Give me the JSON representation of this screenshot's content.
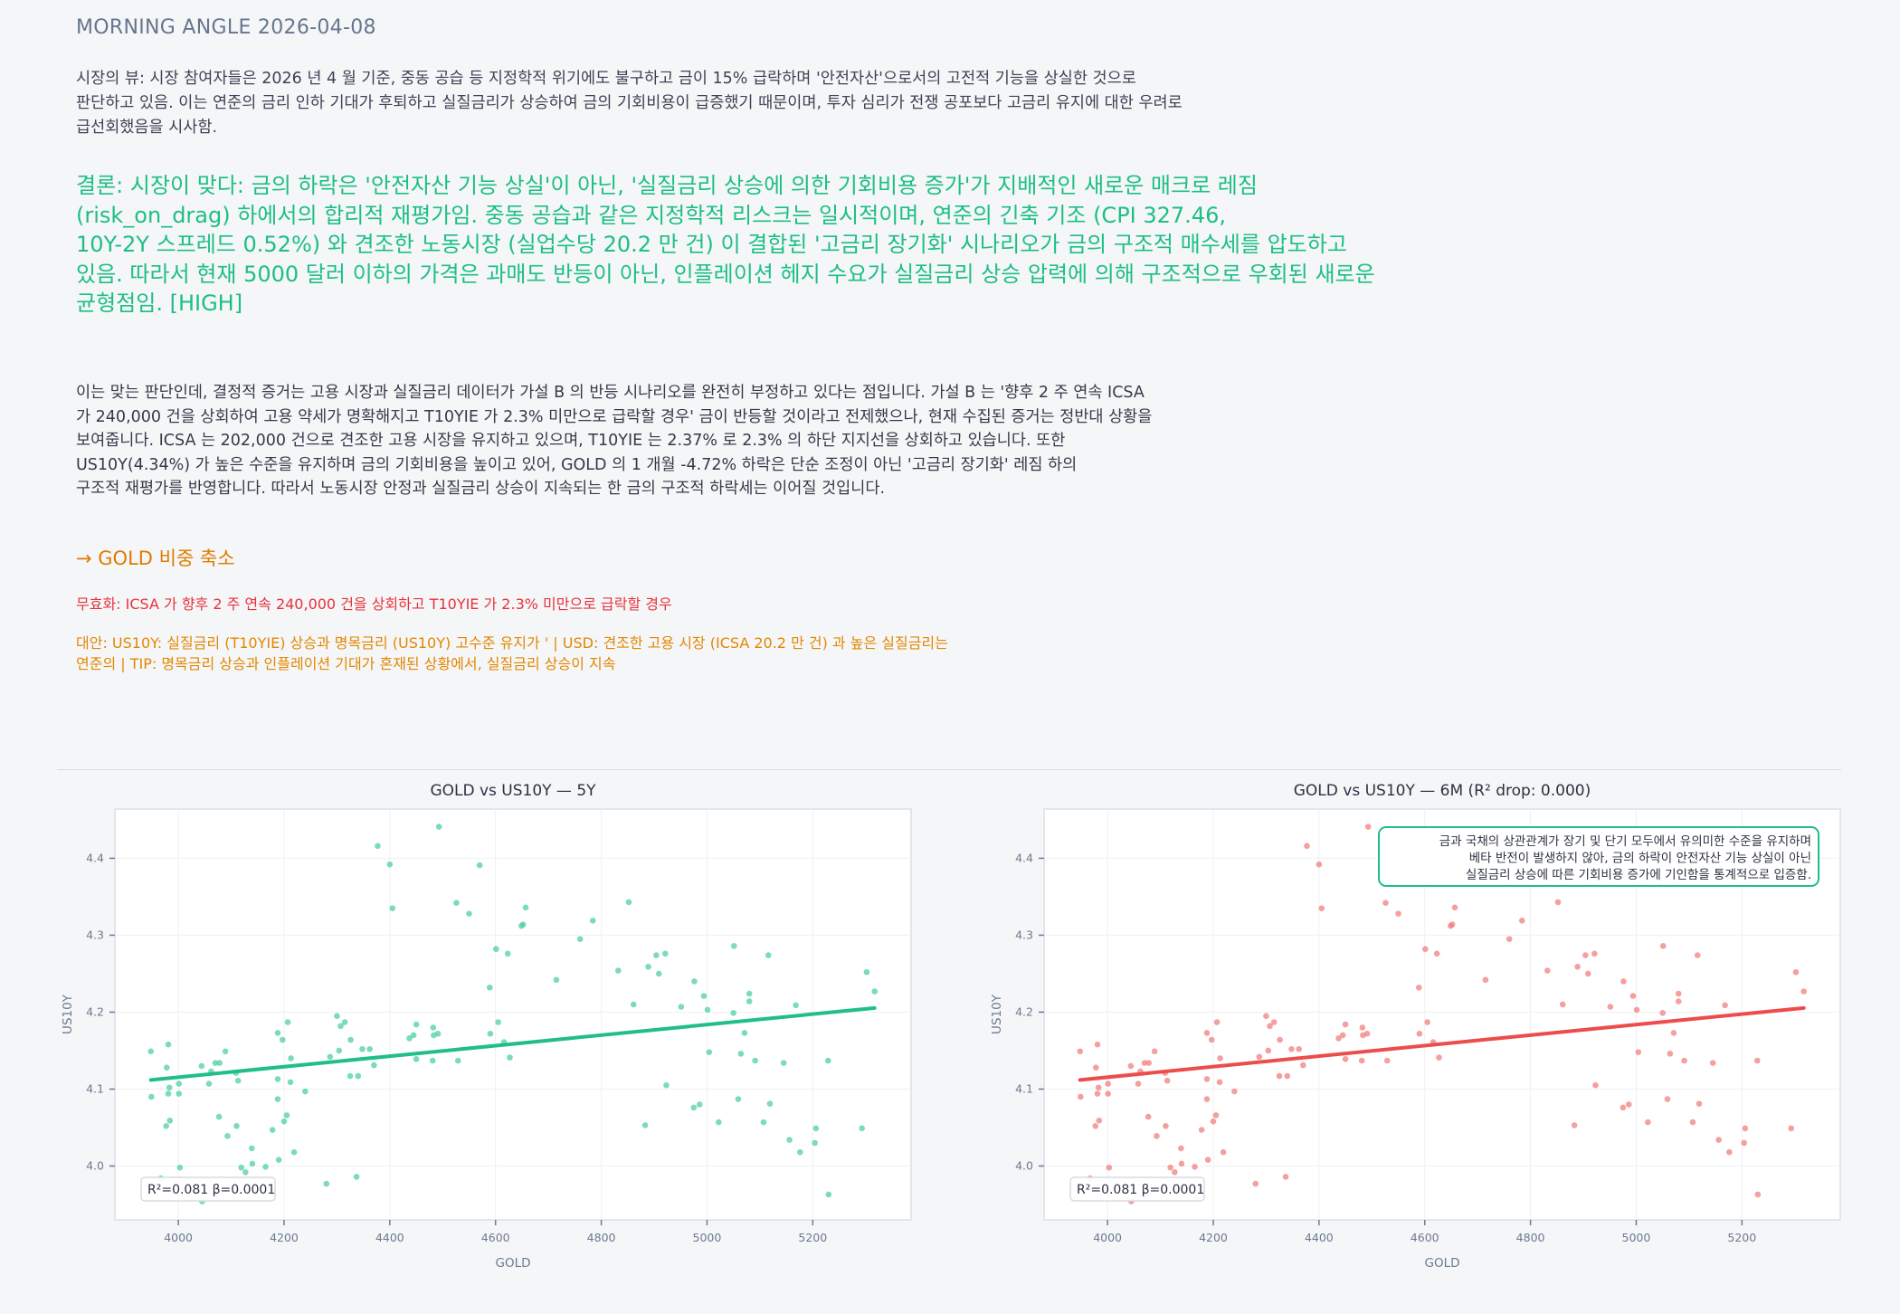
{
  "header": {
    "title": "MORNING ANGLE  2026-04-08"
  },
  "market_view": {
    "lines": [
      "시장의 뷰: 시장 참여자들은 2026 년 4 월 기준, 중동 공습 등 지정학적 위기에도 불구하고 금이 15% 급락하며 '안전자산'으로서의 고전적 기능을 상실한 것으로",
      "판단하고 있음. 이는 연준의 금리 인하 기대가 후퇴하고 실질금리가 상승하여 금의 기회비용이 급증했기 때문이며, 투자 심리가 전쟁 공포보다 고금리 유지에 대한 우려로",
      "급선회했음을 시사함."
    ]
  },
  "conclusion": {
    "lines": [
      "결론: 시장이 맞다: 금의 하락은 '안전자산 기능 상실'이 아닌, '실질금리 상승에 의한 기회비용 증가'가 지배적인 새로운 매크로 레짐",
      "(risk_on_drag) 하에서의 합리적 재평가임. 중동 공습과 같은 지정학적 리스크는 일시적이며, 연준의 긴축 기조 (CPI 327.46,",
      "10Y-2Y 스프레드 0.52%) 와 견조한 노동시장 (실업수당 20.2 만 건) 이 결합된 '고금리 장기화' 시나리오가 금의 구조적 매수세를 압도하고",
      "있음. 따라서 현재 5000 달러 이하의 가격은 과매도 반등이 아닌, 인플레이션 헤지 수요가 실질금리 상승 압력에 의해 구조적으로 우회된 새로운",
      "균형점임.  [HIGH]"
    ]
  },
  "reasoning": {
    "lines": [
      "이는 맞는 판단인데, 결정적 증거는 고용 시장과 실질금리 데이터가 가설 B 의 반등 시나리오를 완전히 부정하고 있다는 점입니다. 가설 B 는 '향후 2 주 연속 ICSA",
      "가 240,000 건을 상회하여 고용 약세가 명확해지고 T10YIE 가 2.3% 미만으로 급락할 경우' 금이 반등할 것이라고 전제했으나, 현재 수집된 증거는 정반대 상황을",
      "보여줍니다. ICSA 는 202,000 건으로 견조한 고용 시장을 유지하고 있으며, T10YIE 는 2.37% 로 2.3% 의 하단 지지선을 상회하고 있습니다. 또한",
      "US10Y(4.34%) 가 높은 수준을 유지하며 금의 기회비용을 높이고 있어, GOLD 의 1 개월 -4.72% 하락은 단순 조정이 아닌 '고금리 장기화' 레짐 하의",
      "구조적 재평가를 반영합니다. 따라서 노동시장 안정과 실질금리 상승이 지속되는 한 금의 구조적 하락세는 이어질 것입니다."
    ]
  },
  "action": "→ GOLD 비중 축소",
  "invalidation": "무효화: ICSA 가 향후 2 주 연속 240,000 건을 상회하고 T10YIE 가 2.3% 미만으로 급락할 경우",
  "alternatives": {
    "lines": [
      "대안: US10Y: 실질금리 (T10YIE) 상승과 명목금리 (US10Y) 고수준 유지가 ' | USD: 견조한 고용 시장 (ICSA 20.2 만 건) 과 높은 실질금리는",
      "연준의 | TIP: 명목금리 상승과 인플레이션 기대가 혼재된 상황에서, 실질금리 상승이 지속"
    ]
  },
  "colors": {
    "green": "#1fbf87",
    "green_point": "#4fd0a0",
    "red": "#ee4b4b",
    "red_point": "#f17f7f",
    "orange": "#e07b00",
    "invalid_red": "#e8323c"
  },
  "chart_data": [
    {
      "type": "scatter",
      "title": "GOLD vs US10Y — 5Y",
      "xlabel": "GOLD",
      "ylabel": "US10Y",
      "xlim": [
        3880,
        5386
      ],
      "ylim": [
        3.93,
        4.464
      ],
      "xticks": [
        4000,
        4200,
        4400,
        4600,
        4800,
        5000,
        5200
      ],
      "yticks": [
        4.0,
        4.1,
        4.2,
        4.3,
        4.4
      ],
      "grid": true,
      "color": "#4fd0a0",
      "line_color": "#1fbf87",
      "stats_label": "R²=0.081  β=0.0001",
      "annotation": "",
      "trendline": "linear"
    },
    {
      "type": "scatter",
      "title": "GOLD vs US10Y — 6M (R² drop: 0.000)",
      "xlabel": "GOLD",
      "ylabel": "US10Y",
      "xlim": [
        3880,
        5386
      ],
      "ylim": [
        3.93,
        4.464
      ],
      "xticks": [
        4000,
        4200,
        4400,
        4600,
        4800,
        5000,
        5200
      ],
      "yticks": [
        4.0,
        4.1,
        4.2,
        4.3,
        4.4
      ],
      "grid": true,
      "color": "#f17f7f",
      "line_color": "#ee4b4b",
      "stats_label": "R²=0.081  β=0.0001",
      "annotation": [
        "금과 국채의 상관관계가 장기 및 단기 모두에서 유의미한 수준을 유지하며",
        "베타 반전이 발생하지 않아, 금의 하락이 안전자산 기능 상실이 아닌",
        "실질금리 상승에 따른 기회비용 증가에 기인함을 통계적으로 입증함."
      ],
      "trendline": "linear"
    }
  ],
  "points": [
    [
      3948,
      4.149
    ],
    [
      3949,
      4.09
    ],
    [
      3981,
      4.158
    ],
    [
      3978,
      4.128
    ],
    [
      3983,
      4.102
    ],
    [
      3981,
      4.094
    ],
    [
      4001,
      4.107
    ],
    [
      4001,
      4.094
    ],
    [
      3977,
      4.052
    ],
    [
      3984,
      4.059
    ],
    [
      4003,
      3.998
    ],
    [
      3967,
      3.984
    ],
    [
      4045,
      3.954
    ],
    [
      4044,
      4.13
    ],
    [
      4062,
      4.123
    ],
    [
      4058,
      4.107
    ],
    [
      4070,
      4.134
    ],
    [
      4078,
      4.134
    ],
    [
      4089,
      4.149
    ],
    [
      4109,
      4.121
    ],
    [
      4113,
      4.111
    ],
    [
      4077,
      4.064
    ],
    [
      4093,
      4.039
    ],
    [
      4110,
      4.052
    ],
    [
      4139,
      4.023
    ],
    [
      4140,
      4.003
    ],
    [
      4119,
      3.998
    ],
    [
      4127,
      3.992
    ],
    [
      4165,
      3.999
    ],
    [
      4178,
      4.047
    ],
    [
      4190,
      4.008
    ],
    [
      4188,
      4.173
    ],
    [
      4197,
      4.164
    ],
    [
      4207,
      4.187
    ],
    [
      4213,
      4.14
    ],
    [
      4188,
      4.113
    ],
    [
      4212,
      4.109
    ],
    [
      4188,
      4.087
    ],
    [
      4205,
      4.066
    ],
    [
      4200,
      4.058
    ],
    [
      4219,
      4.018
    ],
    [
      4240,
      4.097
    ],
    [
      4280,
      3.977
    ],
    [
      4287,
      4.142
    ],
    [
      4300,
      4.195
    ],
    [
      4307,
      4.182
    ],
    [
      4315,
      4.187
    ],
    [
      4304,
      4.15
    ],
    [
      4326,
      4.164
    ],
    [
      4325,
      4.117
    ],
    [
      4340,
      4.117
    ],
    [
      4337,
      3.986
    ],
    [
      4348,
      4.152
    ],
    [
      4362,
      4.152
    ],
    [
      4370,
      4.131
    ],
    [
      4377,
      4.416
    ],
    [
      4400,
      4.392
    ],
    [
      4405,
      4.335
    ],
    [
      4437,
      4.166
    ],
    [
      4445,
      4.17
    ],
    [
      4450,
      4.184
    ],
    [
      4450,
      4.139
    ],
    [
      4482,
      4.18
    ],
    [
      4483,
      4.17
    ],
    [
      4491,
      4.172
    ],
    [
      4481,
      4.137
    ],
    [
      4493,
      4.441
    ],
    [
      4526,
      4.342
    ],
    [
      4550,
      4.328
    ],
    [
      4529,
      4.137
    ],
    [
      4570,
      4.391
    ],
    [
      4589,
      4.232
    ],
    [
      4590,
      4.172
    ],
    [
      4601,
      4.282
    ],
    [
      4605,
      4.187
    ],
    [
      4623,
      4.276
    ],
    [
      4616,
      4.161
    ],
    [
      4627,
      4.141
    ],
    [
      4649,
      4.312
    ],
    [
      4652,
      4.314
    ],
    [
      4657,
      4.336
    ],
    [
      4715,
      4.242
    ],
    [
      4760,
      4.295
    ],
    [
      4784,
      4.319
    ],
    [
      4832,
      4.254
    ],
    [
      4852,
      4.343
    ],
    [
      4861,
      4.21
    ],
    [
      4883,
      4.053
    ],
    [
      4889,
      4.259
    ],
    [
      4904,
      4.274
    ],
    [
      4909,
      4.25
    ],
    [
      4921,
      4.276
    ],
    [
      4923,
      4.105
    ],
    [
      4951,
      4.207
    ],
    [
      4976,
      4.24
    ],
    [
      4975,
      4.076
    ],
    [
      4986,
      4.08
    ],
    [
      4994,
      4.221
    ],
    [
      5001,
      4.203
    ],
    [
      5004,
      4.148
    ],
    [
      5022,
      4.057
    ],
    [
      5051,
      4.286
    ],
    [
      5050,
      4.199
    ],
    [
      5059,
      4.087
    ],
    [
      5064,
      4.146
    ],
    [
      5071,
      4.173
    ],
    [
      5080,
      4.224
    ],
    [
      5080,
      4.214
    ],
    [
      5091,
      4.137
    ],
    [
      5107,
      4.057
    ],
    [
      5116,
      4.274
    ],
    [
      5119,
      4.081
    ],
    [
      5145,
      4.134
    ],
    [
      5156,
      4.034
    ],
    [
      5168,
      4.209
    ],
    [
      5176,
      4.018
    ],
    [
      5204,
      4.03
    ],
    [
      5206,
      4.049
    ],
    [
      5229,
      4.137
    ],
    [
      5230,
      3.963
    ],
    [
      5293,
      4.049
    ],
    [
      5302,
      4.252
    ],
    [
      5317,
      4.227
    ]
  ]
}
